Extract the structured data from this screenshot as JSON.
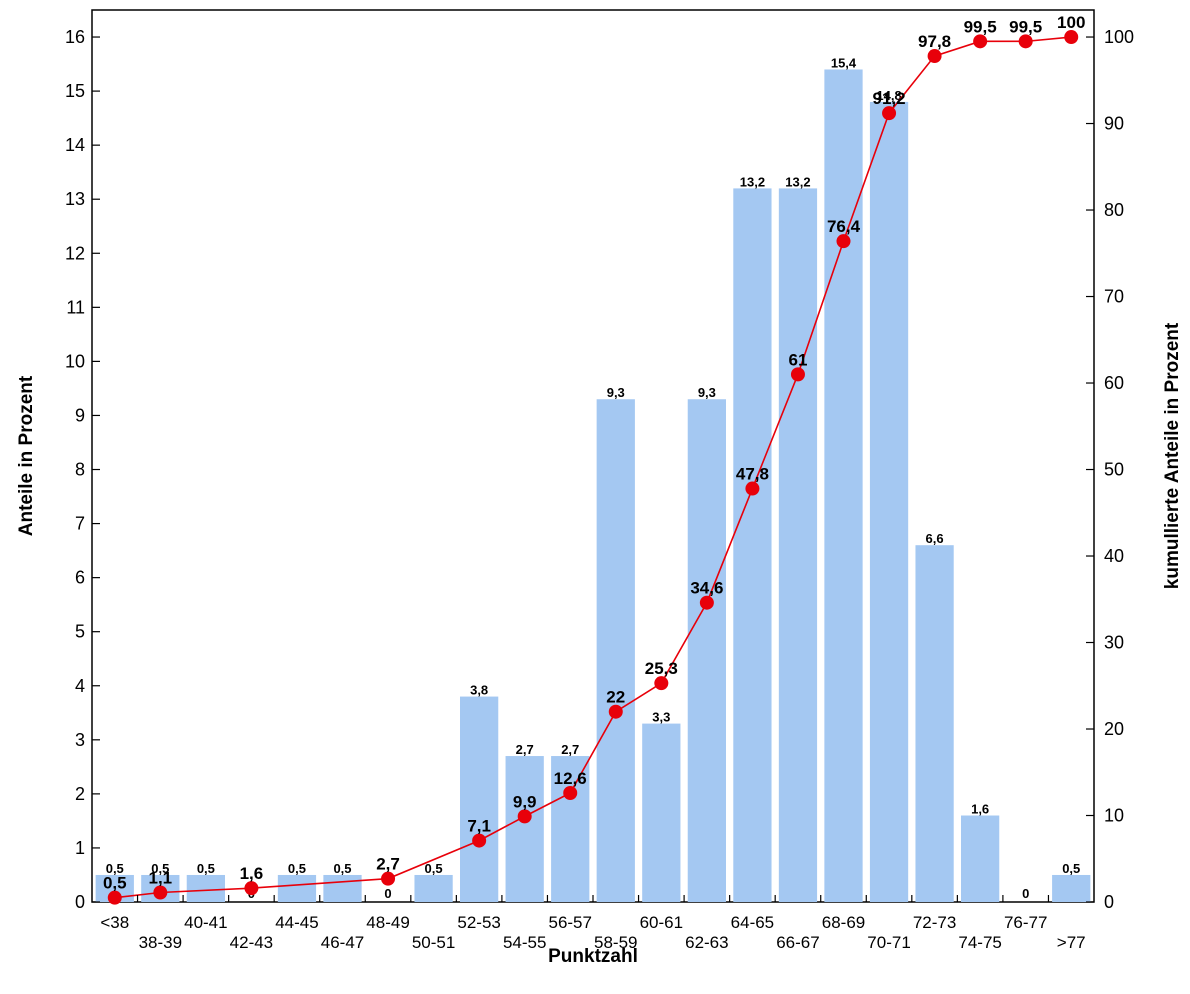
{
  "chart_data": {
    "type": "bar",
    "xlabel": "Punktzahl",
    "ylabel": "Anteile in Prozent",
    "y2label": "kumullierte Anteile in Prozent",
    "ylim": [
      0,
      16.5
    ],
    "y2lim": [
      0,
      103.125
    ],
    "yticks": [
      0,
      1,
      2,
      3,
      4,
      5,
      6,
      7,
      8,
      9,
      10,
      11,
      12,
      13,
      14,
      15,
      16
    ],
    "y2ticks": [
      0,
      10,
      20,
      30,
      40,
      50,
      60,
      70,
      80,
      90,
      100
    ],
    "grid": false,
    "categories": [
      "<38",
      "38-39",
      "40-41",
      "42-43",
      "44-45",
      "46-47",
      "48-49",
      "50-51",
      "52-53",
      "54-55",
      "56-57",
      "58-59",
      "60-61",
      "62-63",
      "64-65",
      "66-67",
      "68-69",
      "70-71",
      "72-73",
      "74-75",
      "76-77",
      ">77"
    ],
    "series": [
      {
        "kind": "bar",
        "axis": "left",
        "values": [
          0.5,
          0.5,
          0.5,
          0,
          0.5,
          0.5,
          0,
          0.5,
          3.8,
          2.7,
          2.7,
          9.3,
          3.3,
          9.3,
          13.2,
          13.2,
          15.4,
          14.8,
          6.6,
          1.6,
          0,
          0.5
        ],
        "labels": [
          "0,5",
          "0,5",
          "0,5",
          "0",
          "0,5",
          "0,5",
          "0",
          "0,5",
          "3,8",
          "2,7",
          "2,7",
          "9,3",
          "3,3",
          "9,3",
          "13,2",
          "13,2",
          "15,4",
          "14,8",
          "6,6",
          "1,6",
          "0",
          "0,5"
        ],
        "color": "#a4c8f2"
      },
      {
        "kind": "line",
        "axis": "right",
        "points": [
          {
            "category": "<38",
            "value": 0.5,
            "label": "0,5"
          },
          {
            "category": "38-39",
            "value": 1.1,
            "label": "1,1"
          },
          {
            "category": "42-43",
            "value": 1.6,
            "label": "1,6"
          },
          {
            "category": "48-49",
            "value": 2.7,
            "label": "2,7"
          },
          {
            "category": "52-53",
            "value": 7.1,
            "label": "7,1"
          },
          {
            "category": "54-55",
            "value": 9.9,
            "label": "9,9"
          },
          {
            "category": "56-57",
            "value": 12.6,
            "label": "12,6"
          },
          {
            "category": "58-59",
            "value": 22,
            "label": "22"
          },
          {
            "category": "60-61",
            "value": 25.3,
            "label": "25,3"
          },
          {
            "category": "62-63",
            "value": 34.6,
            "label": "34,6"
          },
          {
            "category": "64-65",
            "value": 47.8,
            "label": "47,8"
          },
          {
            "category": "66-67",
            "value": 61,
            "label": "61"
          },
          {
            "category": "68-69",
            "value": 76.4,
            "label": "76,4"
          },
          {
            "category": "70-71",
            "value": 91.2,
            "label": "91,2"
          },
          {
            "category": "72-73",
            "value": 97.8,
            "label": "97,8"
          },
          {
            "category": "74-75",
            "value": 99.5,
            "label": "99,5"
          },
          {
            "category": "76-77",
            "value": 99.5,
            "label": "99,5"
          },
          {
            "category": ">77",
            "value": 100,
            "label": "100"
          }
        ],
        "color": "#e8000a"
      }
    ]
  }
}
